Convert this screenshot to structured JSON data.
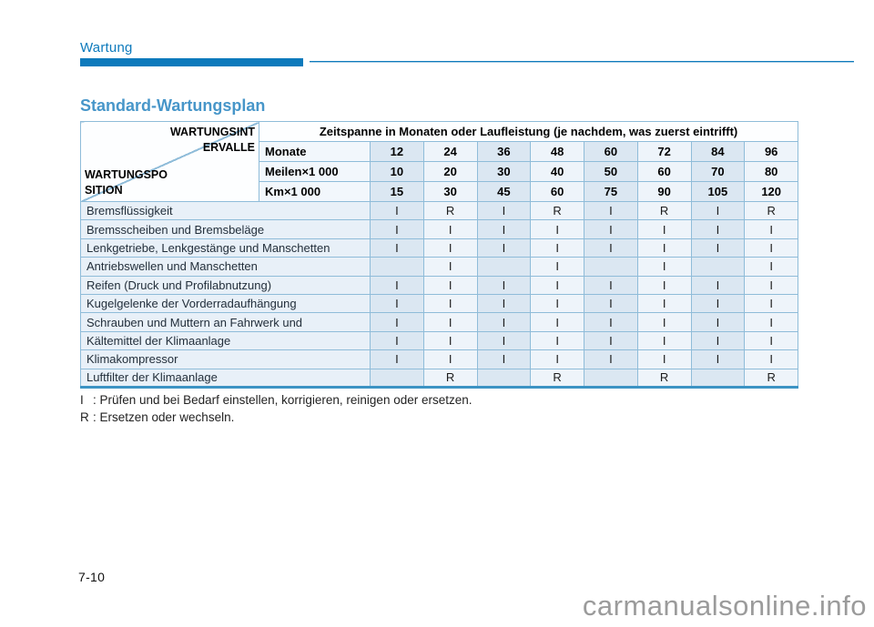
{
  "page": {
    "chapter": "Wartung",
    "title": "Standard-Wartungsplan",
    "page_number": "7-10",
    "watermark": "carmanualsonline.info"
  },
  "colors": {
    "accent_blue": "#0d7abc",
    "title_blue": "#4796c9",
    "grid_blue": "#8fbcd9",
    "grid_strong_blue": "#3c93c4",
    "stripe_dark": "#dbe7f2",
    "stripe_light": "#eef4fa",
    "row_label_bg": "#e8f0f8"
  },
  "table": {
    "corner": {
      "top_line1": "WARTUNGSINT",
      "top_line2": "ERVALLE",
      "bottom_line1": "WARTUNGSPO",
      "bottom_line2": "SITION"
    },
    "span_header": "Zeitspanne in Monaten oder Laufleistung (je nachdem, was zuerst eintrifft)",
    "unit_rows": [
      {
        "label": "Monate",
        "values": [
          "12",
          "24",
          "36",
          "48",
          "60",
          "72",
          "84",
          "96"
        ]
      },
      {
        "label": "Meilen×1 000",
        "values": [
          "10",
          "20",
          "30",
          "40",
          "50",
          "60",
          "70",
          "80"
        ]
      },
      {
        "label": "Km×1 000",
        "values": [
          "15",
          "30",
          "45",
          "60",
          "75",
          "90",
          "105",
          "120"
        ]
      }
    ],
    "rows": [
      {
        "label": "Bremsflüssigkeit",
        "values": [
          "I",
          "R",
          "I",
          "R",
          "I",
          "R",
          "I",
          "R"
        ]
      },
      {
        "label": "Bremsscheiben und Bremsbeläge",
        "values": [
          "I",
          "I",
          "I",
          "I",
          "I",
          "I",
          "I",
          "I"
        ]
      },
      {
        "label": "Lenkgetriebe, Lenkgestänge und Manschetten",
        "values": [
          "I",
          "I",
          "I",
          "I",
          "I",
          "I",
          "I",
          "I"
        ]
      },
      {
        "label": "Antriebswellen und Manschetten",
        "values": [
          "",
          "I",
          "",
          "I",
          "",
          "I",
          "",
          "I"
        ]
      },
      {
        "label": "Reifen (Druck und Profilabnutzung)",
        "values": [
          "I",
          "I",
          "I",
          "I",
          "I",
          "I",
          "I",
          "I"
        ]
      },
      {
        "label": "Kugelgelenke der Vorderradaufhängung",
        "values": [
          "I",
          "I",
          "I",
          "I",
          "I",
          "I",
          "I",
          "I"
        ]
      },
      {
        "label": "Schrauben und Muttern an Fahrwerk und",
        "values": [
          "I",
          "I",
          "I",
          "I",
          "I",
          "I",
          "I",
          "I"
        ]
      },
      {
        "label": "Kältemittel der Klimaanlage",
        "values": [
          "I",
          "I",
          "I",
          "I",
          "I",
          "I",
          "I",
          "I"
        ]
      },
      {
        "label": "Klimakompressor",
        "values": [
          "I",
          "I",
          "I",
          "I",
          "I",
          "I",
          "I",
          "I"
        ]
      },
      {
        "label": "Luftfilter der Klimaanlage",
        "values": [
          "",
          "R",
          "",
          "R",
          "",
          "R",
          "",
          "R"
        ]
      }
    ]
  },
  "legend": [
    {
      "symbol": "I",
      "separator": ":",
      "text": "Prüfen und bei Bedarf einstellen, korrigieren, reinigen oder ersetzen."
    },
    {
      "symbol": "R",
      "separator": ":",
      "text": "Ersetzen oder wechseln."
    }
  ]
}
